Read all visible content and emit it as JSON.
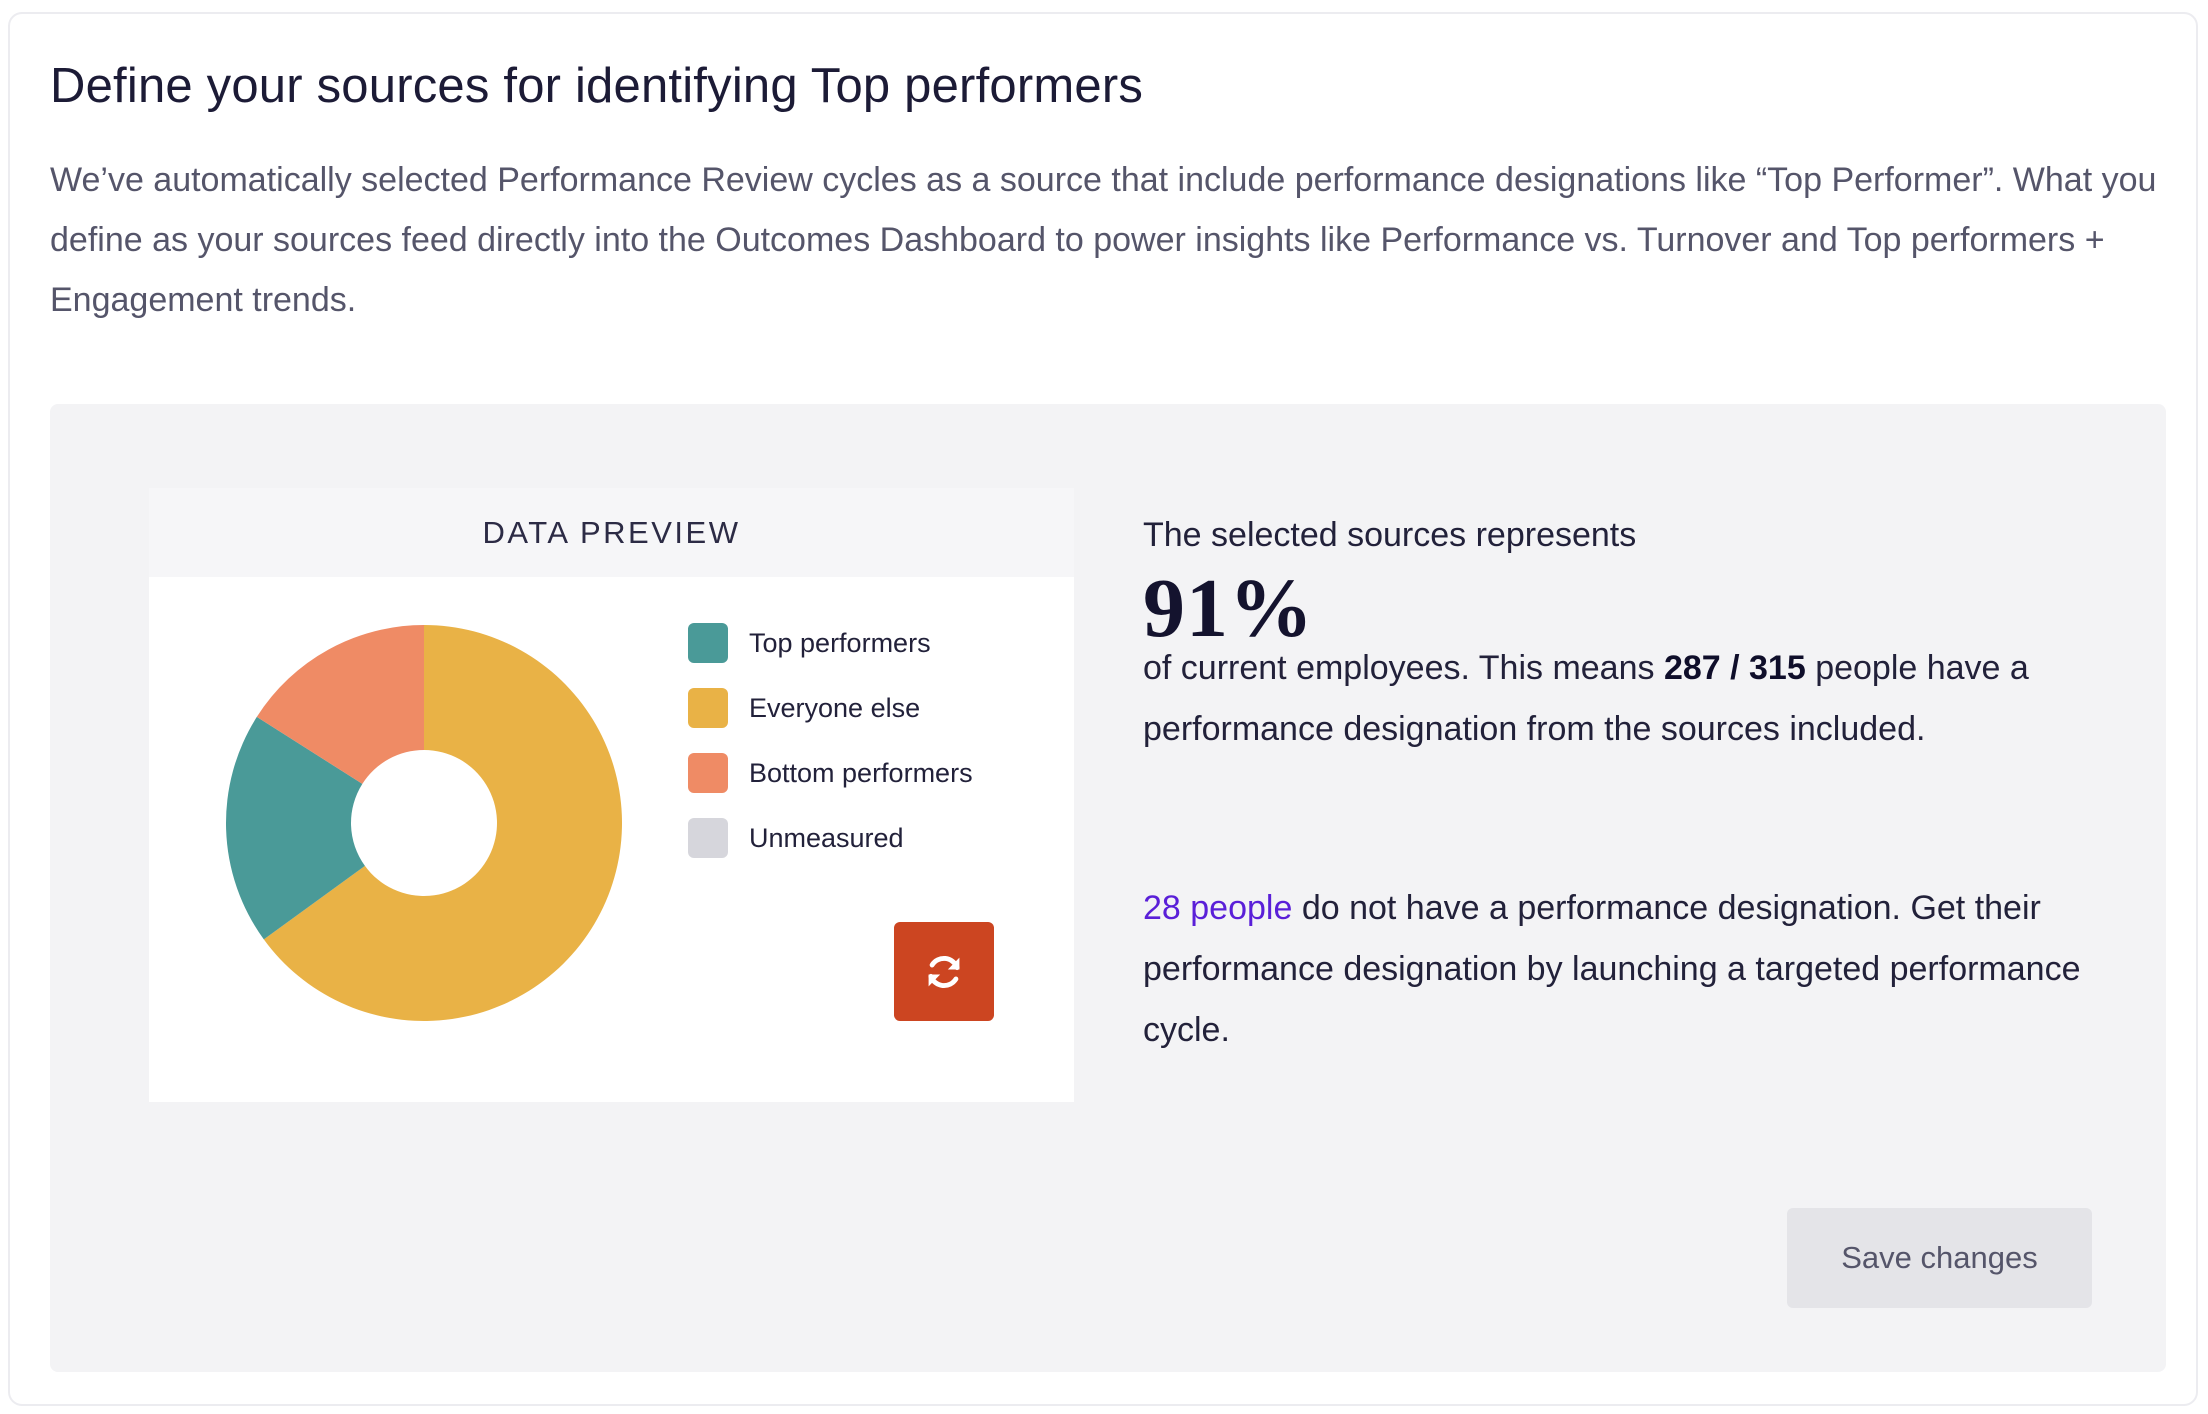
{
  "section": {
    "title": "Define your sources for identifying Top performers",
    "description": "We’ve automatically selected Performance Review cycles as a source that include performance designations like “Top Performer”. What you define as your sources feed directly into the Outcomes Dashboard to power insights like Performance vs. Turnover and Top performers + Engagement trends."
  },
  "preview": {
    "title": "DATA PREVIEW",
    "legend": [
      {
        "label": "Top performers",
        "color": "#4a9a98"
      },
      {
        "label": "Everyone else",
        "color": "#e9b246"
      },
      {
        "label": "Bottom performers",
        "color": "#ef8b65"
      },
      {
        "label": "Unmeasured",
        "color": "#d6d6dc"
      }
    ],
    "refresh_icon": "refresh-icon"
  },
  "chart_data": {
    "type": "pie",
    "title": "",
    "categories": [
      "Everyone else",
      "Top performers",
      "Bottom performers"
    ],
    "values": [
      65,
      19,
      16
    ],
    "colors": [
      "#e9b246",
      "#4a9a98",
      "#ef8b65"
    ],
    "donut": true
  },
  "stats": {
    "intro": "The selected sources represents",
    "percent": "91%",
    "line_prefix": "of current employees. This means ",
    "count": "287 / 315",
    "line_suffix": " people have a performance designation from the sources included.",
    "missing_count": "28 people",
    "missing_text": " do not have a performance designation. Get their performance designation by launching a targeted performance cycle."
  },
  "actions": {
    "save_label": "Save changes"
  }
}
